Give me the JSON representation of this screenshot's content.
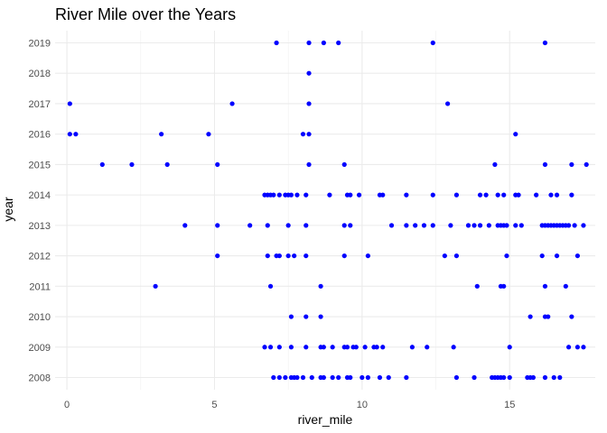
{
  "chart_data": {
    "type": "scatter",
    "title": "River Mile over the Years",
    "xlabel": "river_mile",
    "ylabel": "year",
    "xlim": [
      -0.4,
      17.9
    ],
    "ylim": [
      2007.6,
      2019.4
    ],
    "x_ticks": [
      0,
      5,
      10,
      15
    ],
    "y_ticks": [
      2008,
      2009,
      2010,
      2011,
      2012,
      2013,
      2014,
      2015,
      2016,
      2017,
      2018,
      2019
    ],
    "grid": true,
    "point_color": "#0000ff",
    "series": [
      {
        "points": [
          [
            7.1,
            2019
          ],
          [
            8.2,
            2019
          ],
          [
            8.7,
            2019
          ],
          [
            9.2,
            2019
          ],
          [
            12.4,
            2019
          ],
          [
            16.2,
            2019
          ],
          [
            8.2,
            2018
          ],
          [
            0.1,
            2017
          ],
          [
            5.6,
            2017
          ],
          [
            8.2,
            2017
          ],
          [
            12.9,
            2017
          ],
          [
            0.1,
            2016
          ],
          [
            0.3,
            2016
          ],
          [
            3.2,
            2016
          ],
          [
            4.8,
            2016
          ],
          [
            8.0,
            2016
          ],
          [
            8.2,
            2016
          ],
          [
            15.2,
            2016
          ],
          [
            1.2,
            2015
          ],
          [
            2.2,
            2015
          ],
          [
            3.4,
            2015
          ],
          [
            5.1,
            2015
          ],
          [
            8.2,
            2015
          ],
          [
            9.4,
            2015
          ],
          [
            14.5,
            2015
          ],
          [
            16.2,
            2015
          ],
          [
            17.1,
            2015
          ],
          [
            17.6,
            2015
          ],
          [
            6.7,
            2014
          ],
          [
            6.8,
            2014
          ],
          [
            6.9,
            2014
          ],
          [
            7.0,
            2014
          ],
          [
            7.2,
            2014
          ],
          [
            7.4,
            2014
          ],
          [
            7.5,
            2014
          ],
          [
            7.6,
            2014
          ],
          [
            7.8,
            2014
          ],
          [
            8.1,
            2014
          ],
          [
            8.9,
            2014
          ],
          [
            9.5,
            2014
          ],
          [
            9.6,
            2014
          ],
          [
            9.9,
            2014
          ],
          [
            10.6,
            2014
          ],
          [
            10.7,
            2014
          ],
          [
            11.5,
            2014
          ],
          [
            12.4,
            2014
          ],
          [
            13.2,
            2014
          ],
          [
            14.0,
            2014
          ],
          [
            14.2,
            2014
          ],
          [
            14.6,
            2014
          ],
          [
            14.8,
            2014
          ],
          [
            15.2,
            2014
          ],
          [
            15.3,
            2014
          ],
          [
            15.9,
            2014
          ],
          [
            16.4,
            2014
          ],
          [
            16.6,
            2014
          ],
          [
            17.1,
            2014
          ],
          [
            4.0,
            2013
          ],
          [
            5.1,
            2013
          ],
          [
            6.2,
            2013
          ],
          [
            6.8,
            2013
          ],
          [
            7.5,
            2013
          ],
          [
            8.1,
            2013
          ],
          [
            9.4,
            2013
          ],
          [
            9.6,
            2013
          ],
          [
            11.0,
            2013
          ],
          [
            11.5,
            2013
          ],
          [
            11.8,
            2013
          ],
          [
            12.1,
            2013
          ],
          [
            12.4,
            2013
          ],
          [
            13.0,
            2013
          ],
          [
            13.6,
            2013
          ],
          [
            13.8,
            2013
          ],
          [
            14.0,
            2013
          ],
          [
            14.3,
            2013
          ],
          [
            14.6,
            2013
          ],
          [
            14.7,
            2013
          ],
          [
            14.8,
            2013
          ],
          [
            14.9,
            2013
          ],
          [
            15.2,
            2013
          ],
          [
            15.4,
            2013
          ],
          [
            16.1,
            2013
          ],
          [
            16.2,
            2013
          ],
          [
            16.3,
            2013
          ],
          [
            16.4,
            2013
          ],
          [
            16.5,
            2013
          ],
          [
            16.6,
            2013
          ],
          [
            16.7,
            2013
          ],
          [
            16.8,
            2013
          ],
          [
            16.9,
            2013
          ],
          [
            17.0,
            2013
          ],
          [
            17.2,
            2013
          ],
          [
            17.5,
            2013
          ],
          [
            5.1,
            2012
          ],
          [
            6.8,
            2012
          ],
          [
            7.1,
            2012
          ],
          [
            7.2,
            2012
          ],
          [
            7.5,
            2012
          ],
          [
            7.7,
            2012
          ],
          [
            8.1,
            2012
          ],
          [
            9.4,
            2012
          ],
          [
            10.2,
            2012
          ],
          [
            12.8,
            2012
          ],
          [
            13.2,
            2012
          ],
          [
            14.9,
            2012
          ],
          [
            16.1,
            2012
          ],
          [
            16.6,
            2012
          ],
          [
            17.3,
            2012
          ],
          [
            3.0,
            2011
          ],
          [
            6.9,
            2011
          ],
          [
            8.6,
            2011
          ],
          [
            13.9,
            2011
          ],
          [
            14.7,
            2011
          ],
          [
            14.8,
            2011
          ],
          [
            16.2,
            2011
          ],
          [
            16.9,
            2011
          ],
          [
            7.6,
            2010
          ],
          [
            8.1,
            2010
          ],
          [
            8.6,
            2010
          ],
          [
            15.7,
            2010
          ],
          [
            16.2,
            2010
          ],
          [
            16.3,
            2010
          ],
          [
            17.1,
            2010
          ],
          [
            6.7,
            2009
          ],
          [
            6.9,
            2009
          ],
          [
            7.2,
            2009
          ],
          [
            7.6,
            2009
          ],
          [
            8.1,
            2009
          ],
          [
            8.6,
            2009
          ],
          [
            8.7,
            2009
          ],
          [
            9.0,
            2009
          ],
          [
            9.4,
            2009
          ],
          [
            9.5,
            2009
          ],
          [
            9.7,
            2009
          ],
          [
            9.8,
            2009
          ],
          [
            10.1,
            2009
          ],
          [
            10.4,
            2009
          ],
          [
            10.5,
            2009
          ],
          [
            10.7,
            2009
          ],
          [
            11.7,
            2009
          ],
          [
            12.2,
            2009
          ],
          [
            13.1,
            2009
          ],
          [
            15.0,
            2009
          ],
          [
            17.0,
            2009
          ],
          [
            17.3,
            2009
          ],
          [
            17.5,
            2009
          ],
          [
            7.0,
            2008
          ],
          [
            7.2,
            2008
          ],
          [
            7.4,
            2008
          ],
          [
            7.6,
            2008
          ],
          [
            7.7,
            2008
          ],
          [
            7.8,
            2008
          ],
          [
            8.0,
            2008
          ],
          [
            8.3,
            2008
          ],
          [
            8.6,
            2008
          ],
          [
            8.7,
            2008
          ],
          [
            9.0,
            2008
          ],
          [
            9.2,
            2008
          ],
          [
            9.5,
            2008
          ],
          [
            9.6,
            2008
          ],
          [
            10.0,
            2008
          ],
          [
            10.2,
            2008
          ],
          [
            10.6,
            2008
          ],
          [
            10.9,
            2008
          ],
          [
            11.5,
            2008
          ],
          [
            13.2,
            2008
          ],
          [
            13.8,
            2008
          ],
          [
            14.4,
            2008
          ],
          [
            14.5,
            2008
          ],
          [
            14.6,
            2008
          ],
          [
            14.7,
            2008
          ],
          [
            14.8,
            2008
          ],
          [
            15.0,
            2008
          ],
          [
            15.6,
            2008
          ],
          [
            15.7,
            2008
          ],
          [
            15.8,
            2008
          ],
          [
            16.2,
            2008
          ],
          [
            16.5,
            2008
          ],
          [
            16.7,
            2008
          ]
        ]
      }
    ]
  }
}
